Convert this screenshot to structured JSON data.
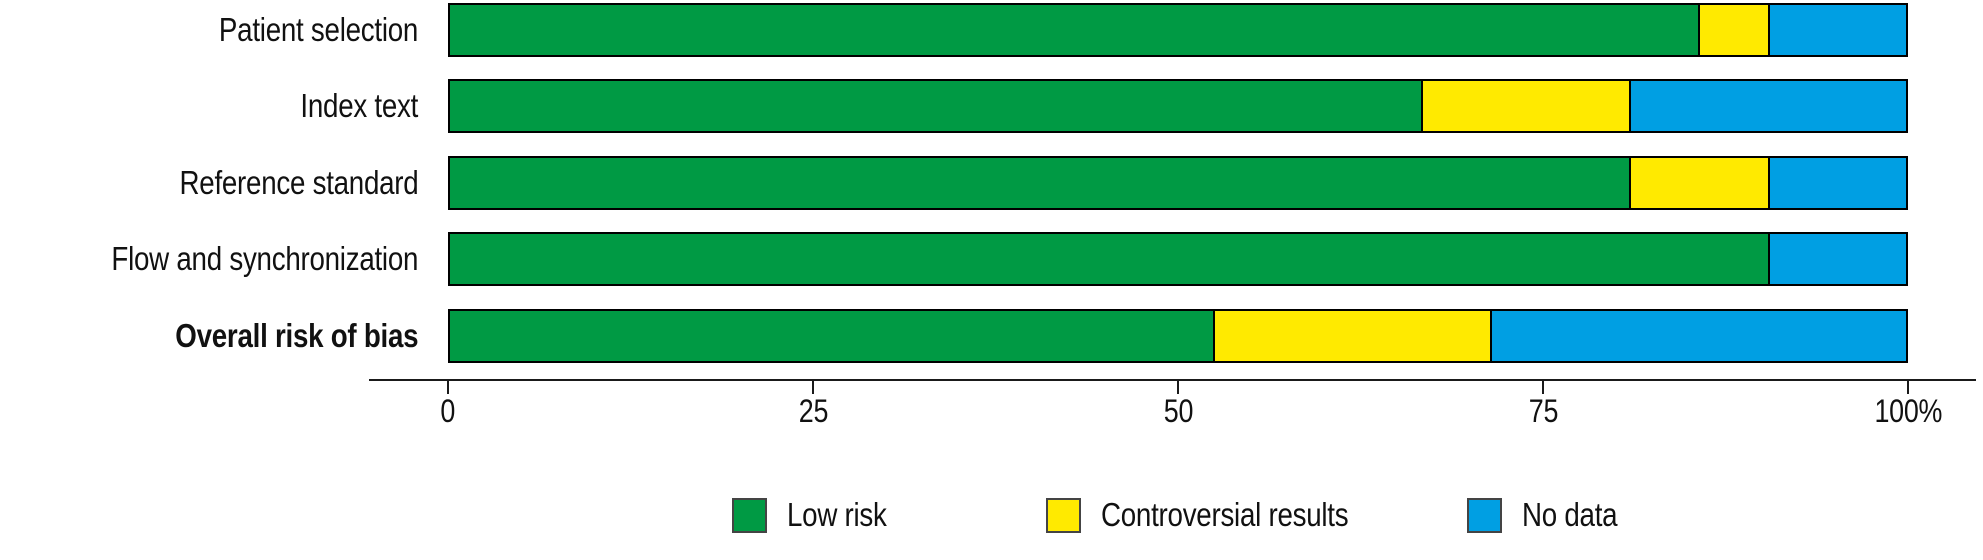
{
  "chart_data": {
    "type": "bar",
    "orientation": "horizontal",
    "stacked": true,
    "title": "",
    "xlabel": "",
    "ylabel": "",
    "xlim": [
      0,
      100
    ],
    "unit": "percent",
    "grid": false,
    "legend_position": "bottom",
    "categories": [
      "Patient selection",
      "Index text",
      "Reference standard",
      "Flow and synchronization",
      "Overall risk of bias"
    ],
    "bold_categories": [
      "Overall risk of bias"
    ],
    "series": [
      {
        "name": "Low risk",
        "color": "#009A44",
        "values": [
          85.7,
          66.7,
          81.0,
          90.5,
          52.4
        ]
      },
      {
        "name": "Controversial results",
        "color": "#FFEA00",
        "values": [
          4.8,
          14.3,
          9.5,
          0,
          19.0
        ]
      },
      {
        "name": "No data",
        "color": "#009FE3",
        "values": [
          9.5,
          19.0,
          9.5,
          9.5,
          28.6
        ]
      }
    ],
    "x_ticks": [
      {
        "value": 0,
        "label": "0"
      },
      {
        "value": 25,
        "label": "25"
      },
      {
        "value": 50,
        "label": "50"
      },
      {
        "value": 75,
        "label": "75"
      },
      {
        "value": 100,
        "label": "100%"
      }
    ]
  }
}
